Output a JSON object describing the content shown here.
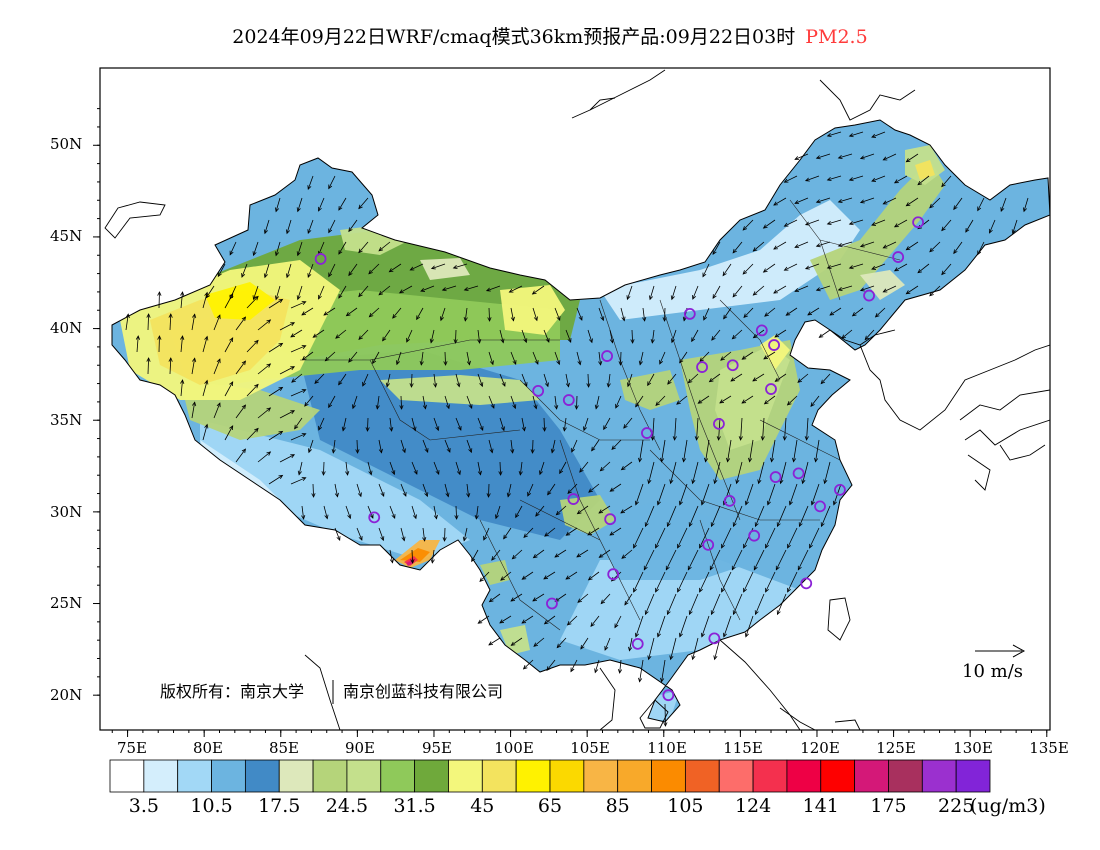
{
  "title": {
    "main": "2024年09月22日WRF/cmaq模式36km预报产品:09月22日03时",
    "pollutant": "PM2.5",
    "pollutant_color": "#ff3b3b"
  },
  "axes": {
    "x_ticks": [
      "75E",
      "80E",
      "85E",
      "90E",
      "95E",
      "100E",
      "105E",
      "110E",
      "115E",
      "120E",
      "125E",
      "130E",
      "135E"
    ],
    "y_ticks": [
      "50N",
      "45N",
      "40N",
      "35N",
      "30N",
      "25N",
      "20N"
    ]
  },
  "wind_reference": {
    "label": "10 m/s"
  },
  "copyright": {
    "org1": "版权所有：南京大学",
    "org2": "南京创蓝科技有限公司"
  },
  "legend": {
    "colors": [
      "#ffffff",
      "#d4eefc",
      "#a2d8f6",
      "#6cb4e0",
      "#418ac6",
      "#dde8bb",
      "#b5d47a",
      "#c4e08c",
      "#8fc95a",
      "#6fa93b",
      "#f3f77c",
      "#f3e35e",
      "#fff200",
      "#fbd900",
      "#f8b545",
      "#f8a92a",
      "#fb8b00",
      "#f06225",
      "#fd6d6a",
      "#f4304e",
      "#ee0045",
      "#fe0000",
      "#d41878",
      "#a8305e",
      "#9b30cf",
      "#8224d8"
    ],
    "labels": [
      "3.5",
      "10.5",
      "17.5",
      "24.5",
      "31.5",
      "45",
      "65",
      "85",
      "105",
      "124",
      "141",
      "175",
      "225"
    ],
    "unit": "(ug/m3)"
  },
  "city_markers": [
    {
      "lon": 87.6,
      "lat": 43.8
    },
    {
      "lon": 101.8,
      "lat": 36.6
    },
    {
      "lon": 103.8,
      "lat": 36.1
    },
    {
      "lon": 106.3,
      "lat": 38.5
    },
    {
      "lon": 111.7,
      "lat": 40.8
    },
    {
      "lon": 116.4,
      "lat": 39.9
    },
    {
      "lon": 117.2,
      "lat": 39.1
    },
    {
      "lon": 112.5,
      "lat": 37.9
    },
    {
      "lon": 114.5,
      "lat": 38.0
    },
    {
      "lon": 117.0,
      "lat": 36.7
    },
    {
      "lon": 113.6,
      "lat": 34.8
    },
    {
      "lon": 108.9,
      "lat": 34.3
    },
    {
      "lon": 117.3,
      "lat": 31.9
    },
    {
      "lon": 118.8,
      "lat": 32.1
    },
    {
      "lon": 121.5,
      "lat": 31.2
    },
    {
      "lon": 120.2,
      "lat": 30.3
    },
    {
      "lon": 114.3,
      "lat": 30.6
    },
    {
      "lon": 112.9,
      "lat": 28.2
    },
    {
      "lon": 115.9,
      "lat": 28.7
    },
    {
      "lon": 104.1,
      "lat": 30.7
    },
    {
      "lon": 106.5,
      "lat": 29.6
    },
    {
      "lon": 106.7,
      "lat": 26.6
    },
    {
      "lon": 102.7,
      "lat": 25.0
    },
    {
      "lon": 108.3,
      "lat": 22.8
    },
    {
      "lon": 113.3,
      "lat": 23.1
    },
    {
      "lon": 119.3,
      "lat": 26.1
    },
    {
      "lon": 110.3,
      "lat": 20.0
    },
    {
      "lon": 91.1,
      "lat": 29.7
    },
    {
      "lon": 123.4,
      "lat": 41.8
    },
    {
      "lon": 125.3,
      "lat": 43.9
    },
    {
      "lon": 126.6,
      "lat": 45.8
    }
  ]
}
